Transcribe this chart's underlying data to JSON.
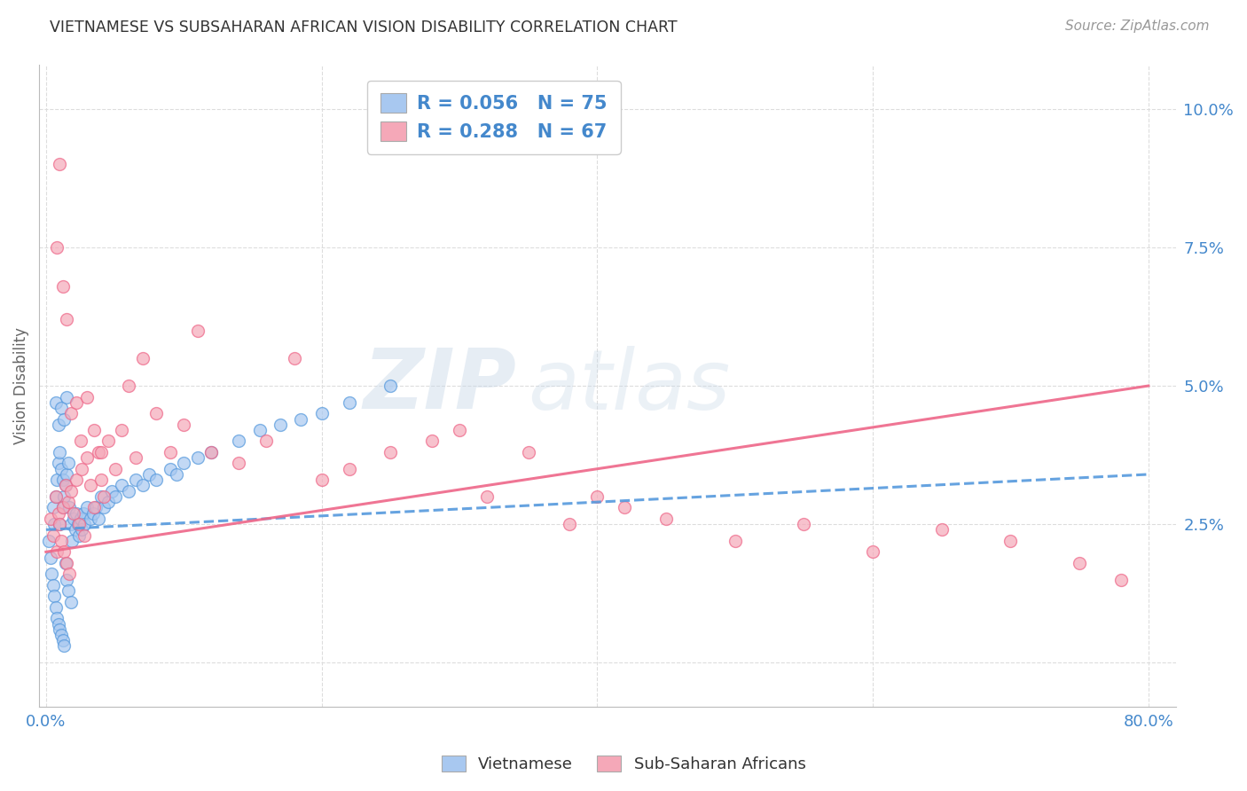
{
  "title": "VIETNAMESE VS SUBSAHARAN AFRICAN VISION DISABILITY CORRELATION CHART",
  "source": "Source: ZipAtlas.com",
  "ylabel": "Vision Disability",
  "blue_color": "#a8c8f0",
  "pink_color": "#f5a8b8",
  "blue_line_color": "#5599dd",
  "pink_line_color": "#ee6688",
  "R_blue": 0.056,
  "N_blue": 75,
  "R_pink": 0.288,
  "N_pink": 67,
  "legend_label_blue": "Vietnamese",
  "legend_label_pink": "Sub-Saharan Africans",
  "watermark_zip": "ZIP",
  "watermark_atlas": "atlas",
  "background_color": "#ffffff",
  "grid_color": "#dddddd",
  "title_color": "#333333",
  "tick_color": "#4488cc",
  "ylabel_color": "#666666",
  "xlim": [
    -0.005,
    0.82
  ],
  "ylim": [
    -0.008,
    0.108
  ],
  "xtick_pos": [
    0.0,
    0.2,
    0.4,
    0.6,
    0.8
  ],
  "xtick_labels": [
    "0.0%",
    "",
    "",
    "",
    "80.0%"
  ],
  "ytick_pos": [
    0.0,
    0.025,
    0.05,
    0.075,
    0.1
  ],
  "ytick_labels": [
    "",
    "2.5%",
    "5.0%",
    "7.5%",
    "10.0%"
  ],
  "blue_x": [
    0.002,
    0.003,
    0.004,
    0.005,
    0.005,
    0.006,
    0.006,
    0.007,
    0.007,
    0.008,
    0.008,
    0.009,
    0.009,
    0.01,
    0.01,
    0.01,
    0.011,
    0.011,
    0.012,
    0.012,
    0.012,
    0.013,
    0.013,
    0.014,
    0.014,
    0.015,
    0.015,
    0.016,
    0.016,
    0.017,
    0.018,
    0.018,
    0.019,
    0.02,
    0.021,
    0.022,
    0.023,
    0.024,
    0.025,
    0.026,
    0.027,
    0.028,
    0.03,
    0.032,
    0.034,
    0.036,
    0.038,
    0.04,
    0.042,
    0.045,
    0.048,
    0.05,
    0.055,
    0.06,
    0.065,
    0.07,
    0.075,
    0.08,
    0.09,
    0.095,
    0.1,
    0.11,
    0.12,
    0.14,
    0.155,
    0.17,
    0.185,
    0.2,
    0.22,
    0.25,
    0.007,
    0.009,
    0.011,
    0.013,
    0.015
  ],
  "blue_y": [
    0.022,
    0.019,
    0.016,
    0.028,
    0.014,
    0.025,
    0.012,
    0.03,
    0.01,
    0.033,
    0.008,
    0.036,
    0.007,
    0.038,
    0.025,
    0.006,
    0.035,
    0.005,
    0.033,
    0.028,
    0.004,
    0.03,
    0.003,
    0.032,
    0.018,
    0.034,
    0.015,
    0.036,
    0.013,
    0.028,
    0.025,
    0.011,
    0.022,
    0.026,
    0.024,
    0.027,
    0.025,
    0.023,
    0.026,
    0.024,
    0.027,
    0.025,
    0.028,
    0.026,
    0.027,
    0.028,
    0.026,
    0.03,
    0.028,
    0.029,
    0.031,
    0.03,
    0.032,
    0.031,
    0.033,
    0.032,
    0.034,
    0.033,
    0.035,
    0.034,
    0.036,
    0.037,
    0.038,
    0.04,
    0.042,
    0.043,
    0.044,
    0.045,
    0.047,
    0.05,
    0.047,
    0.043,
    0.046,
    0.044,
    0.048
  ],
  "pink_x": [
    0.003,
    0.005,
    0.007,
    0.008,
    0.009,
    0.01,
    0.011,
    0.012,
    0.013,
    0.014,
    0.015,
    0.016,
    0.017,
    0.018,
    0.02,
    0.022,
    0.024,
    0.026,
    0.028,
    0.03,
    0.032,
    0.035,
    0.038,
    0.04,
    0.042,
    0.045,
    0.05,
    0.055,
    0.06,
    0.065,
    0.07,
    0.08,
    0.09,
    0.1,
    0.11,
    0.12,
    0.14,
    0.16,
    0.18,
    0.2,
    0.22,
    0.25,
    0.28,
    0.3,
    0.32,
    0.35,
    0.38,
    0.4,
    0.42,
    0.45,
    0.5,
    0.55,
    0.6,
    0.65,
    0.7,
    0.75,
    0.78,
    0.008,
    0.01,
    0.012,
    0.015,
    0.018,
    0.022,
    0.025,
    0.03,
    0.035,
    0.04
  ],
  "pink_y": [
    0.026,
    0.023,
    0.03,
    0.02,
    0.027,
    0.025,
    0.022,
    0.028,
    0.02,
    0.032,
    0.018,
    0.029,
    0.016,
    0.031,
    0.027,
    0.033,
    0.025,
    0.035,
    0.023,
    0.037,
    0.032,
    0.028,
    0.038,
    0.033,
    0.03,
    0.04,
    0.035,
    0.042,
    0.05,
    0.037,
    0.055,
    0.045,
    0.038,
    0.043,
    0.06,
    0.038,
    0.036,
    0.04,
    0.055,
    0.033,
    0.035,
    0.038,
    0.04,
    0.042,
    0.03,
    0.038,
    0.025,
    0.03,
    0.028,
    0.026,
    0.022,
    0.025,
    0.02,
    0.024,
    0.022,
    0.018,
    0.015,
    0.075,
    0.09,
    0.068,
    0.062,
    0.045,
    0.047,
    0.04,
    0.048,
    0.042,
    0.038
  ]
}
